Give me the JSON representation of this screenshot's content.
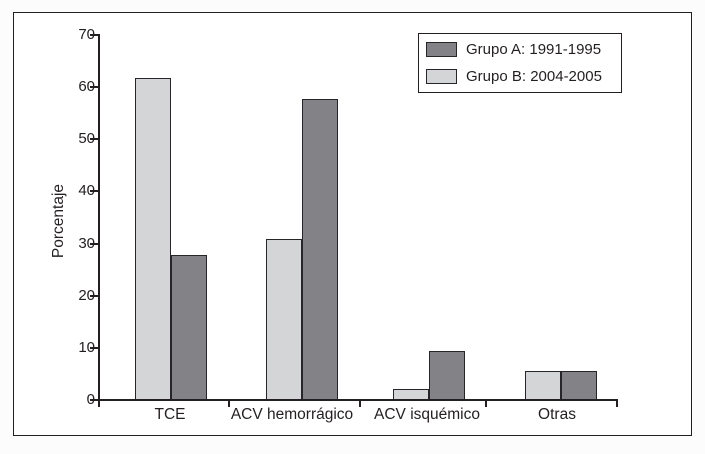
{
  "chart_data": {
    "type": "bar",
    "title": "",
    "ylabel": "Porcentaje",
    "xlabel": "",
    "categories": [
      "TCE",
      "ACV hemorrágico",
      "ACV isquémico",
      "Otras"
    ],
    "series": [
      {
        "name": "Grupo A: 1991-1995",
        "color": "#828287",
        "bar_position": "right",
        "values": [
          27.8,
          57.7,
          9.4,
          5.6
        ]
      },
      {
        "name": "Grupo B: 2004-2005",
        "color": "#d4d5d7",
        "bar_position": "left",
        "values": [
          61.8,
          30.9,
          2.2,
          5.6
        ]
      }
    ],
    "ylim": [
      0,
      70
    ],
    "yticks": [
      0,
      10,
      20,
      30,
      40,
      50,
      60,
      70
    ],
    "grid": false,
    "legend": {
      "position": "top-right",
      "entries": [
        "Grupo A: 1991-1995",
        "Grupo B: 2004-2005"
      ]
    }
  }
}
